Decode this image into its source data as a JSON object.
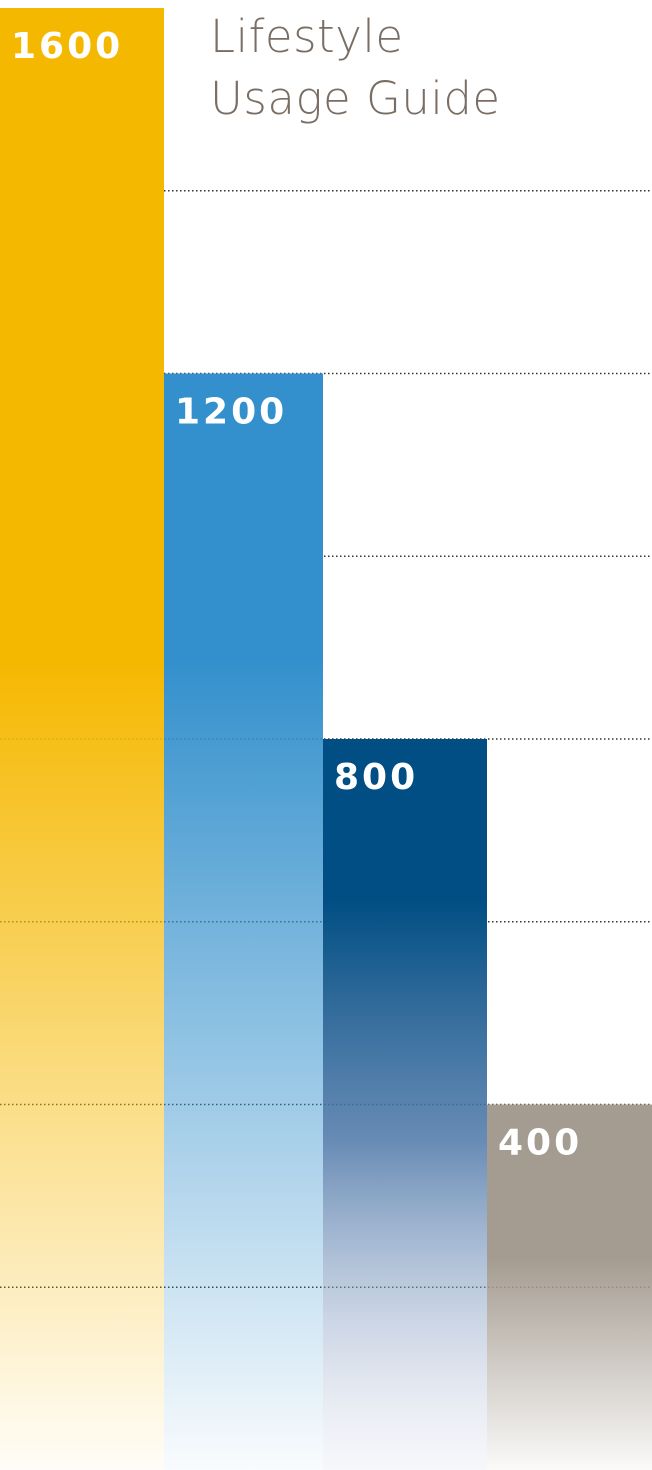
{
  "title": {
    "line1": "Lifestyle",
    "line2": "Usage Guide"
  },
  "chart_data": {
    "type": "bar",
    "categories": [
      "1600",
      "1200",
      "800",
      "400"
    ],
    "values": [
      1600,
      1200,
      800,
      400
    ],
    "data_labels": [
      "1600",
      "1200",
      "800",
      "400"
    ],
    "title": "Lifestyle Usage Guide",
    "xlabel": "",
    "ylabel": "",
    "ylim": [
      0,
      1600
    ],
    "gridlines": [
      200,
      400,
      600,
      800,
      1000,
      1200,
      1400
    ],
    "grid": true,
    "grid_style": "dotted",
    "bar_colors": [
      "#f5b800",
      "#3390cc",
      "#004e83",
      "#a59c91"
    ],
    "label_color": "#ffffff",
    "grid_color": "#333333",
    "background": "#ffffff"
  }
}
